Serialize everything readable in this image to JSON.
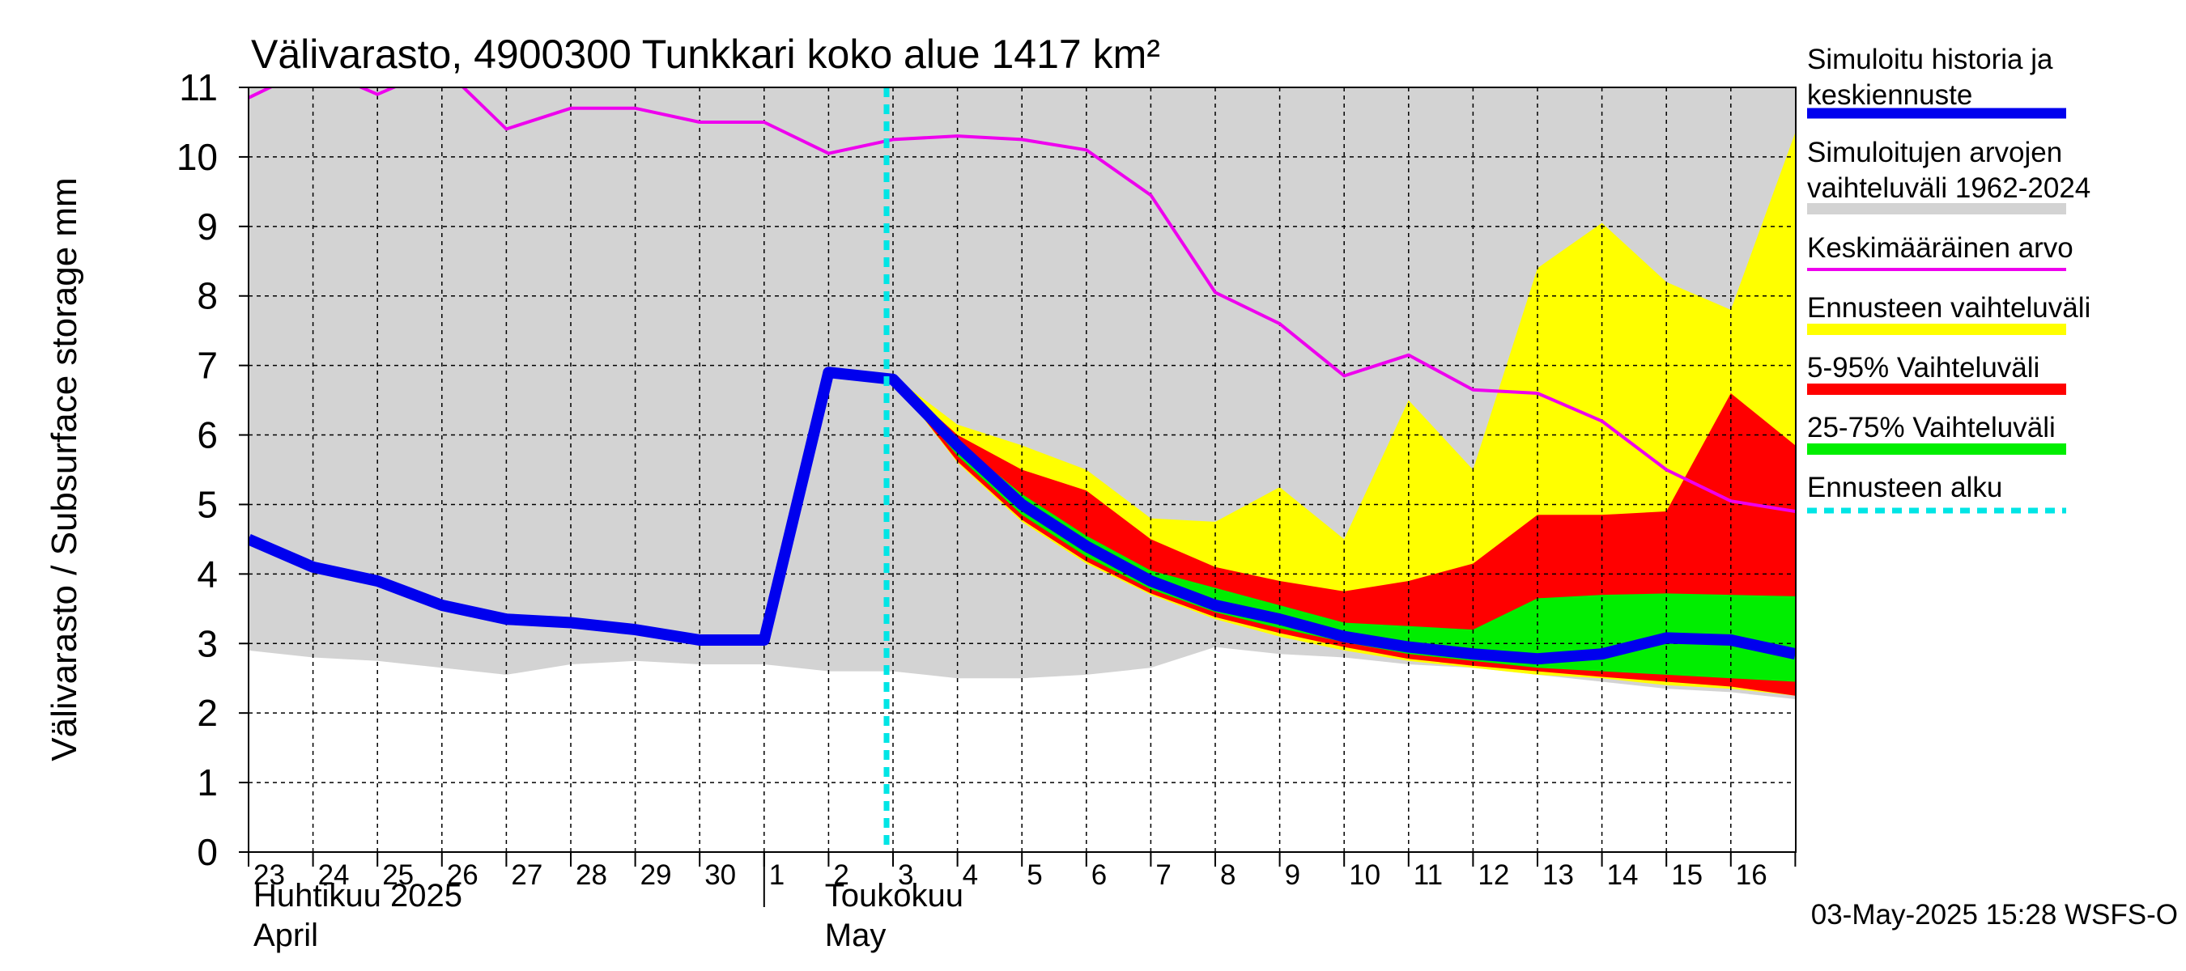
{
  "chart_data": {
    "type": "area",
    "title": "Välivarasto, 4900300 Tunkkari koko alue 1417 km²",
    "ylabel": "Välivarasto / Subsurface storage  mm",
    "ylim": [
      0,
      11
    ],
    "yticks": [
      0,
      1,
      2,
      3,
      4,
      5,
      6,
      7,
      8,
      9,
      10,
      11
    ],
    "x_day_labels": [
      "23",
      "24",
      "25",
      "26",
      "27",
      "28",
      "29",
      "30",
      "1",
      "2",
      "3",
      "4",
      "5",
      "6",
      "7",
      "8",
      "9",
      "10",
      "11",
      "12",
      "13",
      "14",
      "15",
      "16"
    ],
    "month_labels": [
      {
        "fi": "Huhtikuu  2025",
        "en": "April"
      },
      {
        "fi": "Toukokuu",
        "en": "May"
      }
    ],
    "grid": true,
    "legend_position": "right",
    "forecast_start": "2025-05-03",
    "timestamp_label": "03-May-2025 15:28 WSFS-O",
    "series": [
      {
        "name": "Simuloitu historia ja keskiennuste",
        "color": "#0000ee",
        "x": [
          "2025-04-23",
          "2025-04-24",
          "2025-04-25",
          "2025-04-26",
          "2025-04-27",
          "2025-04-28",
          "2025-04-29",
          "2025-04-30",
          "2025-05-01",
          "2025-05-02",
          "2025-05-03",
          "2025-05-04",
          "2025-05-05",
          "2025-05-06",
          "2025-05-07",
          "2025-05-08",
          "2025-05-09",
          "2025-05-10",
          "2025-05-11",
          "2025-05-12",
          "2025-05-13",
          "2025-05-14",
          "2025-05-15",
          "2025-05-16",
          "2025-05-17"
        ],
        "values": [
          4.5,
          4.1,
          3.9,
          3.55,
          3.35,
          3.3,
          3.2,
          3.05,
          3.05,
          6.9,
          6.8,
          5.85,
          5.0,
          4.4,
          3.9,
          3.55,
          3.35,
          3.1,
          2.95,
          2.85,
          2.78,
          2.85,
          3.08,
          3.05,
          2.85
        ]
      },
      {
        "name": "Simuloitujen arvojen vaihteluväli 1962-2024",
        "color": "#d3d3d3",
        "x": [
          "2025-04-23",
          "2025-04-24",
          "2025-04-25",
          "2025-04-26",
          "2025-04-27",
          "2025-04-28",
          "2025-04-29",
          "2025-04-30",
          "2025-05-01",
          "2025-05-02",
          "2025-05-03",
          "2025-05-04",
          "2025-05-05",
          "2025-05-06",
          "2025-05-07",
          "2025-05-08",
          "2025-05-09",
          "2025-05-10",
          "2025-05-11",
          "2025-05-12",
          "2025-05-13",
          "2025-05-14",
          "2025-05-15",
          "2025-05-16",
          "2025-05-17"
        ],
        "low": [
          2.9,
          2.8,
          2.75,
          2.65,
          2.55,
          2.7,
          2.75,
          2.7,
          2.7,
          2.6,
          2.6,
          2.5,
          2.5,
          2.55,
          2.65,
          2.95,
          2.85,
          2.8,
          2.7,
          2.65,
          2.55,
          2.45,
          2.35,
          2.3,
          2.2
        ],
        "high": [
          11,
          11,
          11,
          11,
          11,
          11,
          11,
          11,
          11,
          11,
          11,
          11,
          11,
          11,
          11,
          11,
          11,
          11,
          11,
          11,
          11,
          11,
          11,
          11,
          11
        ]
      },
      {
        "name": "Keskimääräinen arvo",
        "color": "#ee00ee",
        "x": [
          "2025-04-23",
          "2025-04-24",
          "2025-04-25",
          "2025-04-26",
          "2025-04-27",
          "2025-04-28",
          "2025-04-29",
          "2025-04-30",
          "2025-05-01",
          "2025-05-02",
          "2025-05-03",
          "2025-05-04",
          "2025-05-05",
          "2025-05-06",
          "2025-05-07",
          "2025-05-08",
          "2025-05-09",
          "2025-05-10",
          "2025-05-11",
          "2025-05-12",
          "2025-05-13",
          "2025-05-14",
          "2025-05-15",
          "2025-05-16",
          "2025-05-17"
        ],
        "values": [
          10.85,
          11.3,
          10.9,
          11.3,
          10.4,
          10.7,
          10.7,
          10.5,
          10.5,
          10.05,
          10.25,
          10.3,
          10.25,
          10.1,
          9.45,
          8.05,
          7.6,
          6.85,
          7.15,
          6.65,
          6.6,
          6.2,
          5.5,
          5.05,
          4.9
        ]
      },
      {
        "name": "Ennusteen vaihteluväli",
        "color": "#ffff00",
        "x": [
          "2025-05-03",
          "2025-05-04",
          "2025-05-05",
          "2025-05-06",
          "2025-05-07",
          "2025-05-08",
          "2025-05-09",
          "2025-05-10",
          "2025-05-11",
          "2025-05-12",
          "2025-05-13",
          "2025-05-14",
          "2025-05-15",
          "2025-05-16",
          "2025-05-17"
        ],
        "low": [
          6.8,
          5.6,
          4.75,
          4.15,
          3.7,
          3.35,
          3.1,
          2.9,
          2.75,
          2.65,
          2.55,
          2.5,
          2.4,
          2.35,
          2.25
        ],
        "high": [
          6.85,
          6.15,
          5.85,
          5.5,
          4.8,
          4.75,
          5.25,
          4.5,
          6.5,
          5.5,
          8.4,
          9.05,
          8.2,
          7.8,
          10.35
        ]
      },
      {
        "name": "5-95% Vaihteluväli",
        "color": "#ff0000",
        "x": [
          "2025-05-03",
          "2025-05-04",
          "2025-05-05",
          "2025-05-06",
          "2025-05-07",
          "2025-05-08",
          "2025-05-09",
          "2025-05-10",
          "2025-05-11",
          "2025-05-12",
          "2025-05-13",
          "2025-05-14",
          "2025-05-15",
          "2025-05-16",
          "2025-05-17"
        ],
        "low": [
          6.8,
          5.62,
          4.78,
          4.18,
          3.72,
          3.38,
          3.15,
          2.95,
          2.78,
          2.68,
          2.6,
          2.52,
          2.45,
          2.38,
          2.25
        ],
        "high": [
          6.83,
          6.0,
          5.5,
          5.2,
          4.5,
          4.1,
          3.9,
          3.75,
          3.9,
          4.15,
          4.85,
          4.85,
          4.9,
          6.6,
          5.85
        ]
      },
      {
        "name": "25-75% Vaihteluväli",
        "color": "#00ee00",
        "x": [
          "2025-05-03",
          "2025-05-04",
          "2025-05-05",
          "2025-05-06",
          "2025-05-07",
          "2025-05-08",
          "2025-05-09",
          "2025-05-10",
          "2025-05-11",
          "2025-05-12",
          "2025-05-13",
          "2025-05-14",
          "2025-05-15",
          "2025-05-16",
          "2025-05-17"
        ],
        "low": [
          6.8,
          5.7,
          4.85,
          4.25,
          3.78,
          3.45,
          3.22,
          3.02,
          2.85,
          2.75,
          2.65,
          2.6,
          2.55,
          2.5,
          2.45
        ],
        "high": [
          6.82,
          5.9,
          5.15,
          4.55,
          4.05,
          3.8,
          3.55,
          3.3,
          3.25,
          3.2,
          3.65,
          3.7,
          3.72,
          3.7,
          3.68
        ]
      },
      {
        "name": "Ennusteen alku",
        "color": "#00e5e5",
        "x": [
          "2025-05-03"
        ]
      }
    ]
  }
}
